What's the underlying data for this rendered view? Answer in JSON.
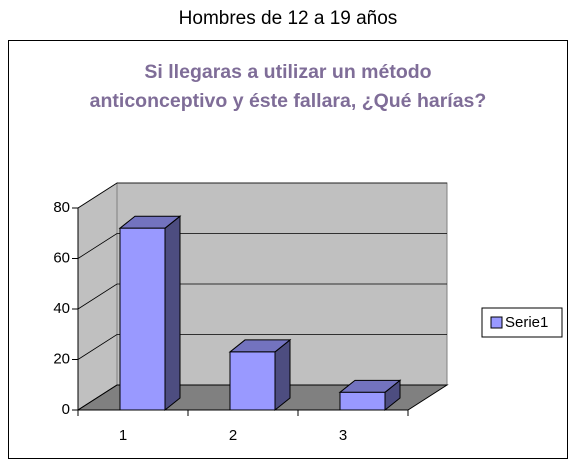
{
  "heading": "Hombres de 12 a 19 años",
  "chart_data": {
    "type": "bar3d",
    "title": "Si llegaras a utilizar un método anticonceptivo y éste fallara, ¿Qué harías?",
    "categories": [
      "1",
      "2",
      "3"
    ],
    "series": [
      {
        "name": "Serie1",
        "color": "#9999ff",
        "values": [
          72,
          23,
          7
        ]
      }
    ],
    "ylim": [
      0,
      80
    ],
    "yticks": [
      0,
      20,
      40,
      60,
      80
    ],
    "grid": true,
    "legend": "right"
  }
}
